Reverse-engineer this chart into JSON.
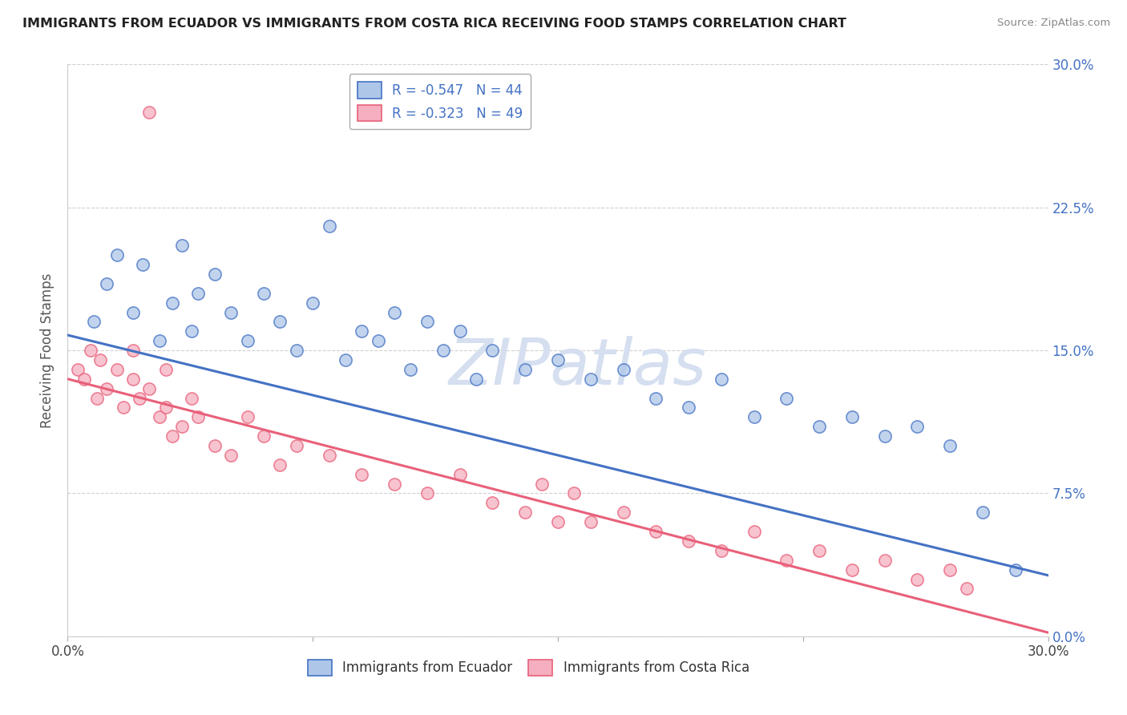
{
  "title": "IMMIGRANTS FROM ECUADOR VS IMMIGRANTS FROM COSTA RICA RECEIVING FOOD STAMPS CORRELATION CHART",
  "source": "Source: ZipAtlas.com",
  "ylabel": "Receiving Food Stamps",
  "ytick_values": [
    0.0,
    7.5,
    15.0,
    22.5,
    30.0
  ],
  "xtick_values": [
    0.0,
    7.5,
    15.0,
    22.5,
    30.0
  ],
  "xmin": 0.0,
  "xmax": 30.0,
  "ymin": 0.0,
  "ymax": 30.0,
  "ecuador_color": "#aec6e8",
  "costa_rica_color": "#f5afc0",
  "ecuador_line_color": "#4472c4",
  "costa_rica_line_color": "#e8607a",
  "watermark_text": "ZIPatlas",
  "watermark_color": "#d5dff0",
  "background_color": "#ffffff",
  "grid_color": "#d0d0d0",
  "ecuador_x": [
    0.8,
    1.2,
    1.5,
    2.0,
    2.3,
    2.8,
    3.2,
    3.5,
    3.8,
    4.0,
    4.5,
    5.0,
    5.5,
    6.0,
    6.5,
    7.0,
    7.5,
    8.0,
    8.5,
    9.0,
    9.5,
    10.0,
    10.5,
    11.0,
    11.5,
    12.0,
    12.5,
    13.0,
    14.0,
    15.0,
    16.0,
    17.0,
    18.0,
    19.0,
    20.0,
    21.0,
    22.0,
    23.0,
    24.0,
    25.0,
    26.0,
    27.0,
    28.0,
    29.0
  ],
  "ecuador_y": [
    16.5,
    18.5,
    20.0,
    17.0,
    19.5,
    15.5,
    17.5,
    20.5,
    16.0,
    18.0,
    19.0,
    17.0,
    15.5,
    18.0,
    16.5,
    15.0,
    17.5,
    21.5,
    14.5,
    16.0,
    15.5,
    17.0,
    14.0,
    16.5,
    15.0,
    16.0,
    13.5,
    15.0,
    14.0,
    14.5,
    13.5,
    14.0,
    12.5,
    12.0,
    13.5,
    11.5,
    12.5,
    11.0,
    11.5,
    10.5,
    11.0,
    10.0,
    6.5,
    3.5
  ],
  "costa_rica_x": [
    0.3,
    0.5,
    0.7,
    0.9,
    1.0,
    1.2,
    1.5,
    1.7,
    2.0,
    2.0,
    2.2,
    2.5,
    2.8,
    3.0,
    3.0,
    3.2,
    3.5,
    3.8,
    4.0,
    4.5,
    5.0,
    5.5,
    6.0,
    6.5,
    7.0,
    8.0,
    9.0,
    10.0,
    11.0,
    12.0,
    13.0,
    14.0,
    14.5,
    15.0,
    15.5,
    16.0,
    17.0,
    18.0,
    19.0,
    20.0,
    21.0,
    22.0,
    23.0,
    24.0,
    25.0,
    26.0,
    27.0,
    27.5,
    2.5
  ],
  "costa_rica_y": [
    14.0,
    13.5,
    15.0,
    12.5,
    14.5,
    13.0,
    14.0,
    12.0,
    13.5,
    15.0,
    12.5,
    13.0,
    11.5,
    14.0,
    12.0,
    10.5,
    11.0,
    12.5,
    11.5,
    10.0,
    9.5,
    11.5,
    10.5,
    9.0,
    10.0,
    9.5,
    8.5,
    8.0,
    7.5,
    8.5,
    7.0,
    6.5,
    8.0,
    6.0,
    7.5,
    6.0,
    6.5,
    5.5,
    5.0,
    4.5,
    5.5,
    4.0,
    4.5,
    3.5,
    4.0,
    3.0,
    3.5,
    2.5,
    27.5
  ],
  "ecuador_reg_x0": 0.0,
  "ecuador_reg_y0": 15.8,
  "ecuador_reg_x1": 30.0,
  "ecuador_reg_y1": 3.2,
  "cr_reg_x0": 0.0,
  "cr_reg_y0": 13.5,
  "cr_reg_x1": 30.0,
  "cr_reg_y1": 0.2
}
